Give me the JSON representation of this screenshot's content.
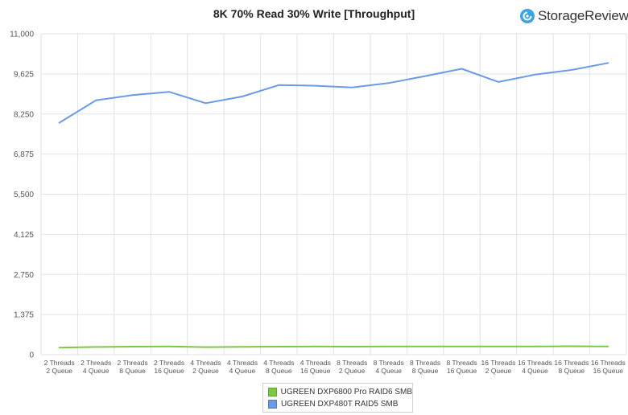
{
  "brand": {
    "name": "StorageReview"
  },
  "colors": {
    "green": "#7dc843",
    "blue": "#6a9be8",
    "grid": "#e2e2e2"
  },
  "chart_data": {
    "type": "line",
    "title": "8K 70% Read 30% Write [Throughput]",
    "xlabel": "",
    "ylabel": "",
    "ylim": [
      0,
      11000
    ],
    "yticks": [
      "0",
      "1,375",
      "2,750",
      "4,125",
      "5,500",
      "6,875",
      "8,250",
      "9,625",
      "11,000"
    ],
    "grid": true,
    "legend_position": "bottom",
    "categories": [
      [
        "2 Threads",
        "2 Queue"
      ],
      [
        "2 Threads",
        "4 Queue"
      ],
      [
        "2 Threads",
        "8 Queue"
      ],
      [
        "2 Threads",
        "16 Queue"
      ],
      [
        "4 Threads",
        "2 Queue"
      ],
      [
        "4 Threads",
        "4 Queue"
      ],
      [
        "4 Threads",
        "8 Queue"
      ],
      [
        "4 Threads",
        "16 Queue"
      ],
      [
        "8 Threads",
        "2 Queue"
      ],
      [
        "8 Threads",
        "4 Queue"
      ],
      [
        "8 Threads",
        "8 Queue"
      ],
      [
        "8 Threads",
        "16 Queue"
      ],
      [
        "16 Threads",
        "2 Queue"
      ],
      [
        "16 Threads",
        "4 Queue"
      ],
      [
        "16 Threads",
        "8 Queue"
      ],
      [
        "16 Threads",
        "16 Queue"
      ]
    ],
    "series": [
      {
        "name": "UGREEN DXP6800 Pro RAID6 SMB",
        "color": "#7dc843",
        "values": [
          240,
          265,
          275,
          280,
          260,
          270,
          275,
          280,
          275,
          280,
          280,
          285,
          280,
          285,
          290,
          285
        ]
      },
      {
        "name": "UGREEN DXP480T RAID5 SMB",
        "color": "#6a9be8",
        "values": [
          7950,
          8720,
          8900,
          9010,
          8620,
          8850,
          9240,
          9220,
          9160,
          9310,
          9550,
          9800,
          9350,
          9600,
          9760,
          10000
        ]
      }
    ]
  }
}
